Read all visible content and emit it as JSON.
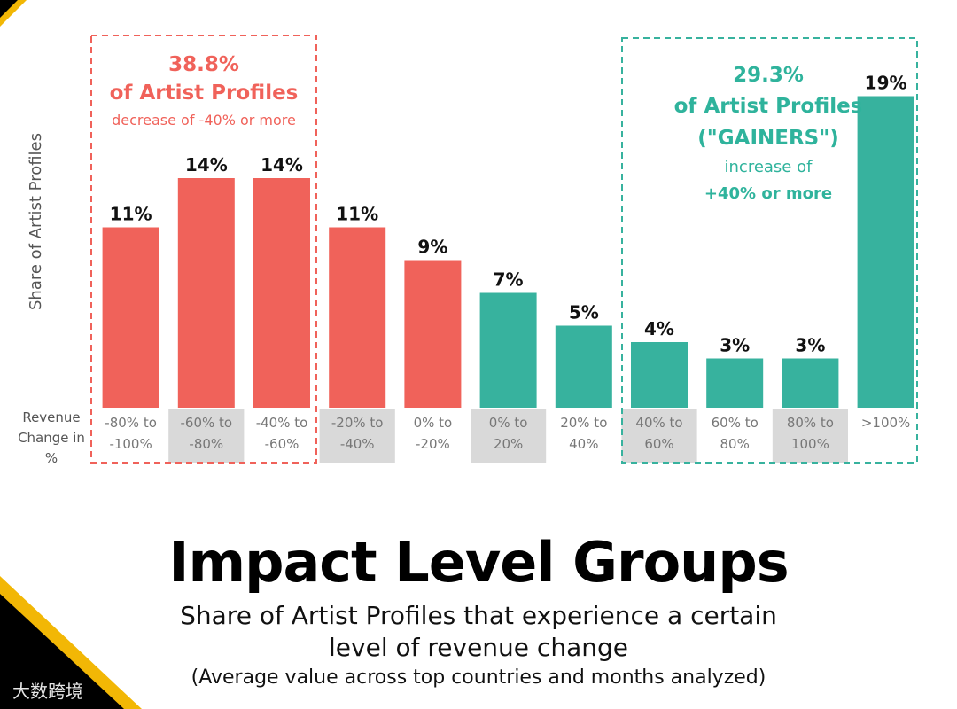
{
  "chart_data": {
    "type": "bar",
    "ylabel": "Share of Artist Profiles",
    "xlabel": "Revenue Change in %",
    "categories": [
      "-80% to -100%",
      "-60% to -80%",
      "-40% to -60%",
      "-20% to -40%",
      "0% to -20%",
      "0% to 20%",
      "20% to 40%",
      "40% to 60%",
      "60% to 80%",
      "80% to 100%",
      ">100%"
    ],
    "values": [
      11,
      14,
      14,
      11,
      9,
      7,
      5,
      4,
      3,
      3,
      19
    ],
    "value_labels": [
      "11%",
      "14%",
      "14%",
      "11%",
      "9%",
      "7%",
      "5%",
      "4%",
      "3%",
      "3%",
      "19%"
    ],
    "bar_groups": [
      "decrease",
      "decrease",
      "decrease",
      "decrease",
      "decrease",
      "increase",
      "increase",
      "increase",
      "increase",
      "increase",
      "increase"
    ],
    "shaded_categories": [
      1,
      3,
      5,
      7,
      9
    ],
    "ylim": [
      0,
      20
    ],
    "colors": {
      "decrease": "#f0625a",
      "increase": "#37b29e",
      "shade": "#d9d9d9",
      "tick_text": "#777777",
      "axis_label": "#555555"
    },
    "annotations": {
      "losers": {
        "percent": "38.8%",
        "line1": "of Artist Profiles",
        "line2": "decrease of -40% or more",
        "color": "#f0625a"
      },
      "gainers": {
        "percent": "29.3%",
        "line1": "of Artist Profiles",
        "line2": "(\"GAINERS\")",
        "line3": "increase of",
        "line4": "+40% or more",
        "color": "#2fb39c"
      }
    }
  },
  "title": "Impact Level Groups",
  "subtitle_line1": "Share of Artist Profiles that experience a certain",
  "subtitle_line2": "level of revenue change",
  "note": "(Average value across top countries and months analyzed)",
  "watermark": "大数跨境",
  "decor_colors": {
    "black": "#000000",
    "gold": "#f2b705"
  }
}
